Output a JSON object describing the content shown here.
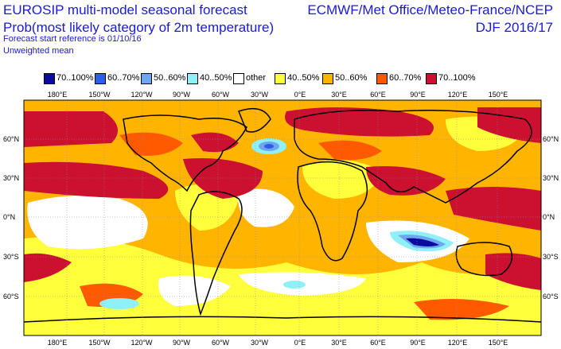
{
  "header": {
    "title": "EUROSIP multi-model seasonal forecast",
    "subtitle": "Prob(most likely category of 2m temperature)",
    "forecast_ref": "Forecast start reference is 01/10/16",
    "weighting": "Unweighted mean",
    "source": "ECMWF/Met Office/Meteo-France/NCEP",
    "period": "DJF 2016/17"
  },
  "legend": [
    {
      "label": "70..100%",
      "color": "#0a0a9c"
    },
    {
      "label": "60..70%",
      "color": "#2d5fe6"
    },
    {
      "label": "50..60%",
      "color": "#6ea6f0"
    },
    {
      "label": "40..50%",
      "color": "#8ff0f8"
    },
    {
      "label": "other",
      "color": "#ffffff"
    },
    {
      "label": "40..50%",
      "color": "#ffff3c"
    },
    {
      "label": "50..60%",
      "color": "#ffb400"
    },
    {
      "label": "60..70%",
      "color": "#ff5a00"
    },
    {
      "label": "70..100%",
      "color": "#cc1030"
    }
  ],
  "axes": {
    "lon_labels": [
      "180°E",
      "150°W",
      "120°W",
      "90°W",
      "60°W",
      "30°W",
      "0°E",
      "30°E",
      "60°E",
      "90°E",
      "120°E",
      "150°E"
    ],
    "lat_labels": [
      "60°N",
      "30°N",
      "0°N",
      "30°S",
      "60°S"
    ]
  }
}
